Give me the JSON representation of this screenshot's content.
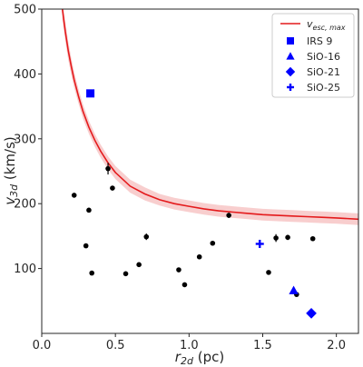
{
  "chart_data": {
    "type": "scatter",
    "title": "",
    "xlabel": {
      "main": "r",
      "sub": "2d",
      "unit": " (pc)"
    },
    "ylabel": {
      "main": "v",
      "sub": "3d",
      "unit": " (km/s)"
    },
    "xlim": [
      0.0,
      2.15
    ],
    "ylim": [
      0,
      500
    ],
    "xticks": [
      0.0,
      0.5,
      1.0,
      1.5,
      2.0
    ],
    "xtick_labels": [
      "0.0",
      "0.5",
      "1.0",
      "1.5",
      "2.0"
    ],
    "yticks": [
      100,
      200,
      300,
      400,
      500
    ],
    "ytick_labels": [
      "100",
      "200",
      "300",
      "400",
      "500"
    ],
    "grid": false,
    "legend_position": "top-right",
    "colors": {
      "curve": "#e41a1c",
      "band": "#f7c5c5",
      "highlight": "#0000ff",
      "points": "#000000"
    },
    "curve": {
      "name_main": "v",
      "name_sub": "esc, max",
      "x": [
        0.14,
        0.16,
        0.18,
        0.2,
        0.22,
        0.25,
        0.28,
        0.32,
        0.36,
        0.4,
        0.45,
        0.5,
        0.6,
        0.7,
        0.8,
        0.9,
        1.0,
        1.1,
        1.2,
        1.3,
        1.4,
        1.5,
        1.6,
        1.7,
        1.8,
        1.9,
        2.0,
        2.15
      ],
      "y": [
        500,
        465,
        436,
        412,
        391,
        365,
        342,
        318,
        298,
        281,
        263,
        248,
        227,
        215,
        206,
        200,
        196,
        192,
        189,
        187,
        185,
        183,
        182,
        181,
        180,
        179,
        178,
        176
      ],
      "band_half_width": [
        16,
        15,
        14,
        13,
        12,
        11,
        11,
        10,
        10,
        10,
        10,
        10,
        10,
        10,
        9,
        9,
        9,
        9,
        9,
        9,
        9,
        9,
        9,
        9,
        9,
        9,
        9,
        9
      ]
    },
    "series": [
      {
        "name": "IRS 9",
        "marker": "square",
        "points": [
          [
            0.33,
            370
          ]
        ]
      },
      {
        "name": "SiO-16",
        "marker": "triangle",
        "points": [
          [
            1.71,
            66
          ]
        ]
      },
      {
        "name": "SiO-21",
        "marker": "diamond",
        "points": [
          [
            1.83,
            31
          ]
        ]
      },
      {
        "name": "SiO-25",
        "marker": "plus",
        "points": [
          [
            1.48,
            138
          ]
        ]
      }
    ],
    "black_points": [
      {
        "x": 0.22,
        "y": 213,
        "err": 0
      },
      {
        "x": 0.3,
        "y": 135,
        "err": 0
      },
      {
        "x": 0.32,
        "y": 190,
        "err": 0
      },
      {
        "x": 0.34,
        "y": 93,
        "err": 0
      },
      {
        "x": 0.45,
        "y": 254,
        "err": 9
      },
      {
        "x": 0.48,
        "y": 224,
        "err": 0
      },
      {
        "x": 0.57,
        "y": 92,
        "err": 0
      },
      {
        "x": 0.66,
        "y": 106,
        "err": 0
      },
      {
        "x": 0.71,
        "y": 149,
        "err": 5
      },
      {
        "x": 0.93,
        "y": 98,
        "err": 0
      },
      {
        "x": 0.97,
        "y": 75,
        "err": 0
      },
      {
        "x": 1.07,
        "y": 118,
        "err": 0
      },
      {
        "x": 1.16,
        "y": 139,
        "err": 0
      },
      {
        "x": 1.27,
        "y": 182,
        "err": 4
      },
      {
        "x": 1.54,
        "y": 94,
        "err": 0
      },
      {
        "x": 1.59,
        "y": 147,
        "err": 6
      },
      {
        "x": 1.67,
        "y": 148,
        "err": 4
      },
      {
        "x": 1.73,
        "y": 60,
        "err": 0
      },
      {
        "x": 1.84,
        "y": 146,
        "err": 0
      }
    ]
  }
}
